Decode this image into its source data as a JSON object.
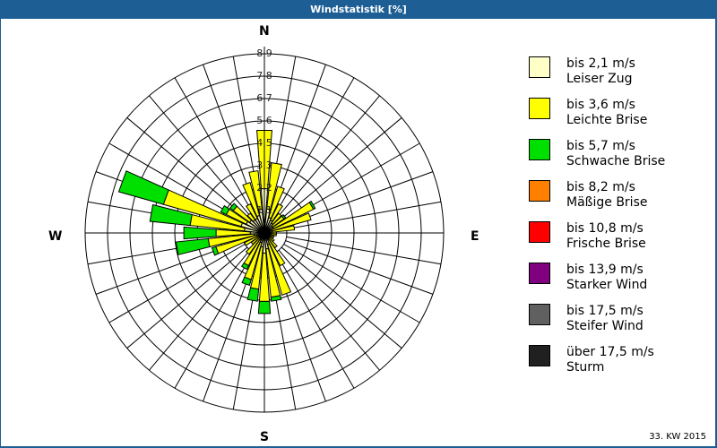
{
  "window": {
    "title": "Windstatistik [%]"
  },
  "footer": {
    "period": "33. KW 2015"
  },
  "compass": {
    "n": "N",
    "e": "E",
    "s": "S",
    "w": "W"
  },
  "legend": [
    {
      "speed": "bis 2,1 m/s",
      "name": "Leiser Zug",
      "color": "#ffffc8"
    },
    {
      "speed": "bis 3,6 m/s",
      "name": "Leichte Brise",
      "color": "#ffff00"
    },
    {
      "speed": "bis 5,7 m/s",
      "name": "Schwache Brise",
      "color": "#00e000"
    },
    {
      "speed": "bis 8,2 m/s",
      "name": "Mäßige Brise",
      "color": "#ff8000"
    },
    {
      "speed": "bis 10,8 m/s",
      "name": "Frische Brise",
      "color": "#ff0000"
    },
    {
      "speed": "bis 13,9 m/s",
      "name": "Starker Wind",
      "color": "#800080"
    },
    {
      "speed": "bis 17,5 m/s",
      "name": "Steifer Wind",
      "color": "#606060"
    },
    {
      "speed": "über 17,5 m/s",
      "name": "Sturm",
      "color": "#202020"
    }
  ],
  "chart_data": {
    "type": "wind-rose",
    "title": "Windstatistik [%]",
    "unit": "%",
    "ring_labels": [
      "1,1",
      "2,2",
      "3,3",
      "4,5",
      "5,6",
      "6,7",
      "7,8",
      "8,9"
    ],
    "ring_step": 1.11,
    "rmax": 8.9,
    "sector_width_deg": 10,
    "directions_deg": [
      0,
      10,
      20,
      30,
      40,
      50,
      60,
      70,
      80,
      90,
      100,
      110,
      120,
      130,
      140,
      150,
      160,
      170,
      180,
      190,
      200,
      210,
      220,
      230,
      240,
      250,
      260,
      270,
      280,
      290,
      300,
      310,
      320,
      330,
      340,
      350
    ],
    "series": [
      {
        "name": "bis 2,1 m/s",
        "values": [
          2.2,
          1.2,
          0.8,
          0.7,
          0.6,
          0.5,
          0.5,
          0.4,
          0.4,
          0.3,
          0.3,
          0.3,
          0.3,
          0.3,
          0.3,
          0.4,
          0.6,
          0.8,
          1.0,
          0.7,
          0.5,
          0.4,
          0.3,
          0.3,
          0.3,
          0.4,
          0.5,
          0.7,
          1.0,
          1.2,
          1.0,
          0.9,
          0.8,
          0.8,
          0.9,
          1.2
        ]
      },
      {
        "name": "bis 3,6 m/s",
        "values": [
          2.9,
          2.3,
          1.6,
          0.9,
          0.6,
          0.7,
          2.2,
          2.0,
          1.1,
          0.3,
          0.3,
          0.2,
          0.2,
          0.3,
          0.6,
          1.4,
          2.6,
          2.4,
          2.4,
          2.1,
          1.9,
          1.4,
          1.0,
          0.5,
          0.8,
          2.1,
          2.3,
          1.7,
          2.7,
          4.0,
          1.1,
          1.0,
          0.4,
          0.8,
          1.7,
          1.9
        ]
      },
      {
        "name": "bis 5,7 m/s",
        "values": [
          0,
          0,
          0,
          0,
          0,
          0.1,
          0.1,
          0,
          0,
          0,
          0,
          0,
          0,
          0,
          0,
          0,
          0,
          0.2,
          0.6,
          0.6,
          0.3,
          0.2,
          0,
          0,
          0,
          0.2,
          1.6,
          1.6,
          2.0,
          2.3,
          0.3,
          0.2,
          0,
          0,
          0,
          0
        ]
      },
      {
        "name": "bis 8,2 m/s",
        "values": [
          0,
          0,
          0,
          0,
          0,
          0,
          0,
          0,
          0,
          0,
          0,
          0,
          0,
          0,
          0,
          0,
          0,
          0,
          0,
          0,
          0,
          0,
          0,
          0,
          0,
          0,
          0,
          0,
          0,
          0,
          0,
          0,
          0,
          0,
          0,
          0
        ]
      }
    ],
    "grid": true,
    "legend_position": "right"
  }
}
